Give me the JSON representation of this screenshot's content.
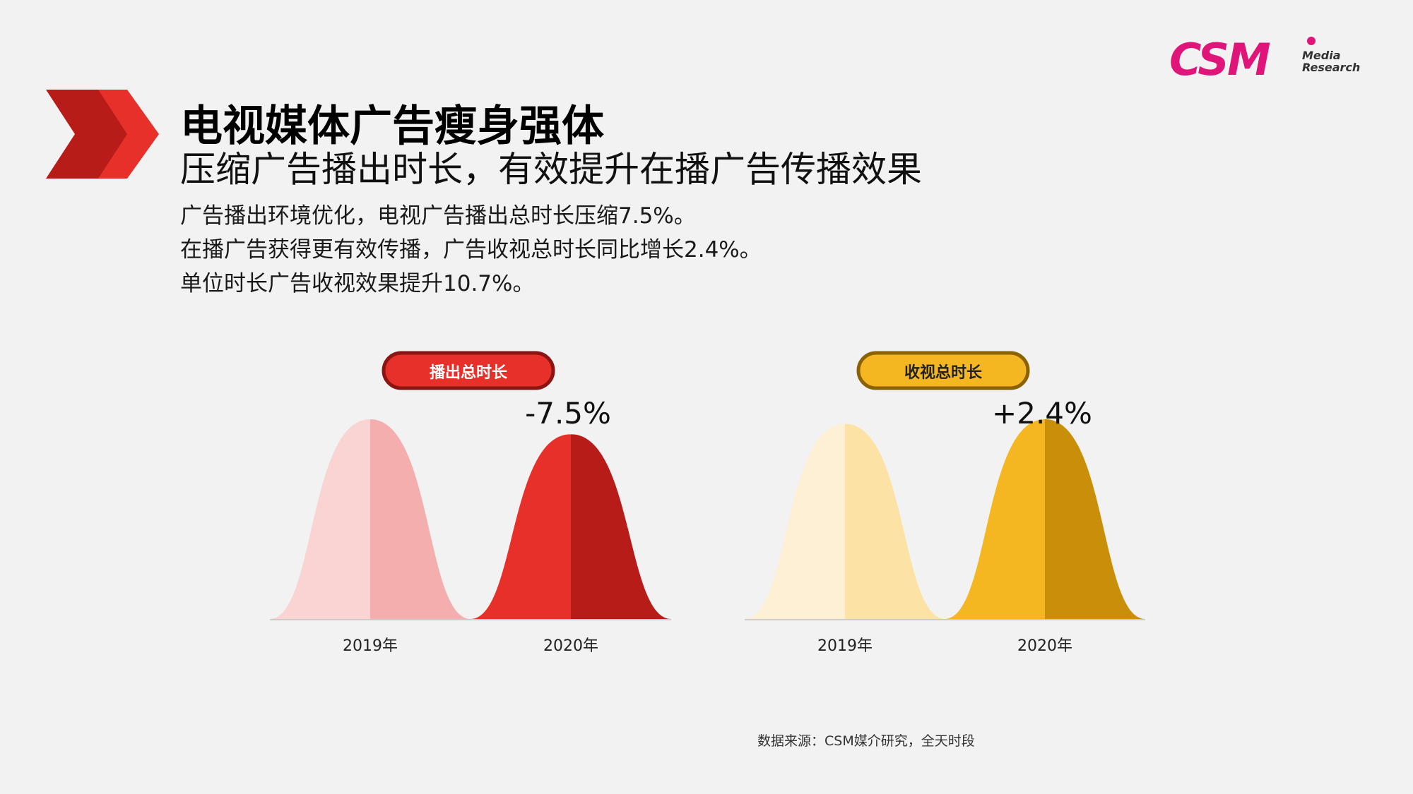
{
  "brand": {
    "logo_text": "CSM",
    "logo_sub1": "Media",
    "logo_sub2": "Research"
  },
  "header": {
    "title": "电视媒体广告瘦身强体",
    "subtitle": "压缩广告播出时长，有效提升在播广告传播效果"
  },
  "bullets": [
    "广告播出环境优化，电视广告播出总时长压缩7.5%。",
    "在播广告获得更有效传播，广告收视总时长同比增长2.4%。",
    "单位时长广告收视效果提升10.7%。"
  ],
  "chart_data": [
    {
      "type": "area",
      "title": "播出总时长",
      "categories": [
        "2019年",
        "2020年"
      ],
      "change_label": "-7.5%",
      "values": [
        100,
        92.5
      ],
      "colors": {
        "light_left": "#fad3d3",
        "light_right": "#f5aeae",
        "dark_left": "#e8302a",
        "dark_right": "#b81c18",
        "badge_fill": "#e8302a",
        "badge_border": "#8b1512"
      }
    },
    {
      "type": "area",
      "title": "收视总时长",
      "categories": [
        "2019年",
        "2020年"
      ],
      "change_label": "+2.4%",
      "values": [
        100,
        102.4
      ],
      "colors": {
        "light_left": "#fdf0d4",
        "light_right": "#fce2a4",
        "dark_left": "#f5b721",
        "dark_right": "#c98f08",
        "badge_fill": "#f5b721",
        "badge_border": "#8a6200"
      }
    }
  ],
  "source": "数据来源：CSM媒介研究，全天时段"
}
